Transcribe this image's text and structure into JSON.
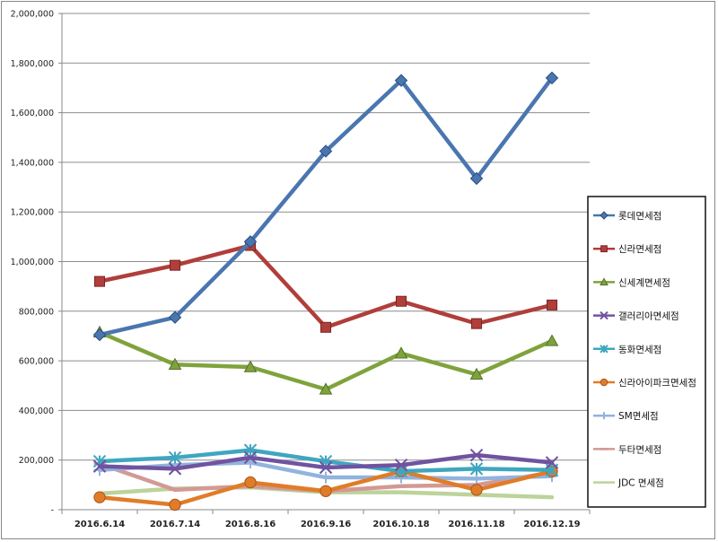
{
  "chart_data": {
    "type": "line",
    "title": "",
    "xlabel": "",
    "ylabel": "",
    "x": [
      "2016.6.14",
      "2016.7.14",
      "2016.8.16",
      "2016.9.16",
      "2016.10.18",
      "2016.11.18",
      "2016.12.19"
    ],
    "ylim": [
      0,
      2000000
    ],
    "yticks": [
      0,
      200000,
      400000,
      600000,
      800000,
      1000000,
      1200000,
      1400000,
      1600000,
      1800000,
      2000000
    ],
    "ytick_labels": [
      "-",
      "200,000",
      "400,000",
      "600,000",
      "800,000",
      "1,000,000",
      "1,200,000",
      "1,400,000",
      "1,600,000",
      "1,800,000",
      "2,000,000"
    ],
    "grid": "horizontal",
    "legend_position": "right",
    "series": [
      {
        "name": "롯데면세점",
        "color": "#4a76b0",
        "marker": "diamond",
        "values": [
          705000,
          775000,
          1080000,
          1445000,
          1730000,
          1335000,
          1740000
        ]
      },
      {
        "name": "신라면세점",
        "color": "#b03e3a",
        "marker": "square",
        "values": [
          920000,
          985000,
          1065000,
          735000,
          840000,
          750000,
          825000
        ]
      },
      {
        "name": "신세계면세점",
        "color": "#7fa33c",
        "marker": "triangle",
        "values": [
          715000,
          585000,
          575000,
          485000,
          630000,
          545000,
          680000
        ]
      },
      {
        "name": "갤러리아면세점",
        "color": "#7053a0",
        "marker": "x",
        "values": [
          175000,
          165000,
          210000,
          170000,
          180000,
          220000,
          190000
        ]
      },
      {
        "name": "동화면세점",
        "color": "#3fa6bf",
        "marker": "star",
        "values": [
          195000,
          210000,
          240000,
          195000,
          155000,
          165000,
          160000
        ]
      },
      {
        "name": "신라아이파크면세점",
        "color": "#e07c28",
        "marker": "circle",
        "values": [
          50000,
          20000,
          110000,
          75000,
          155000,
          80000,
          155000
        ]
      },
      {
        "name": "SM면세점",
        "color": "#92b3de",
        "marker": "plus",
        "values": [
          160000,
          180000,
          190000,
          130000,
          130000,
          125000,
          135000
        ]
      },
      {
        "name": "두타면세점",
        "color": "#d39995",
        "marker": "dash",
        "values": [
          185000,
          80000,
          95000,
          75000,
          95000,
          100000,
          150000
        ]
      },
      {
        "name": "JDC 면세점",
        "color": "#bcd39b",
        "marker": "line",
        "values": [
          65000,
          85000,
          90000,
          70000,
          70000,
          60000,
          50000
        ]
      }
    ]
  }
}
